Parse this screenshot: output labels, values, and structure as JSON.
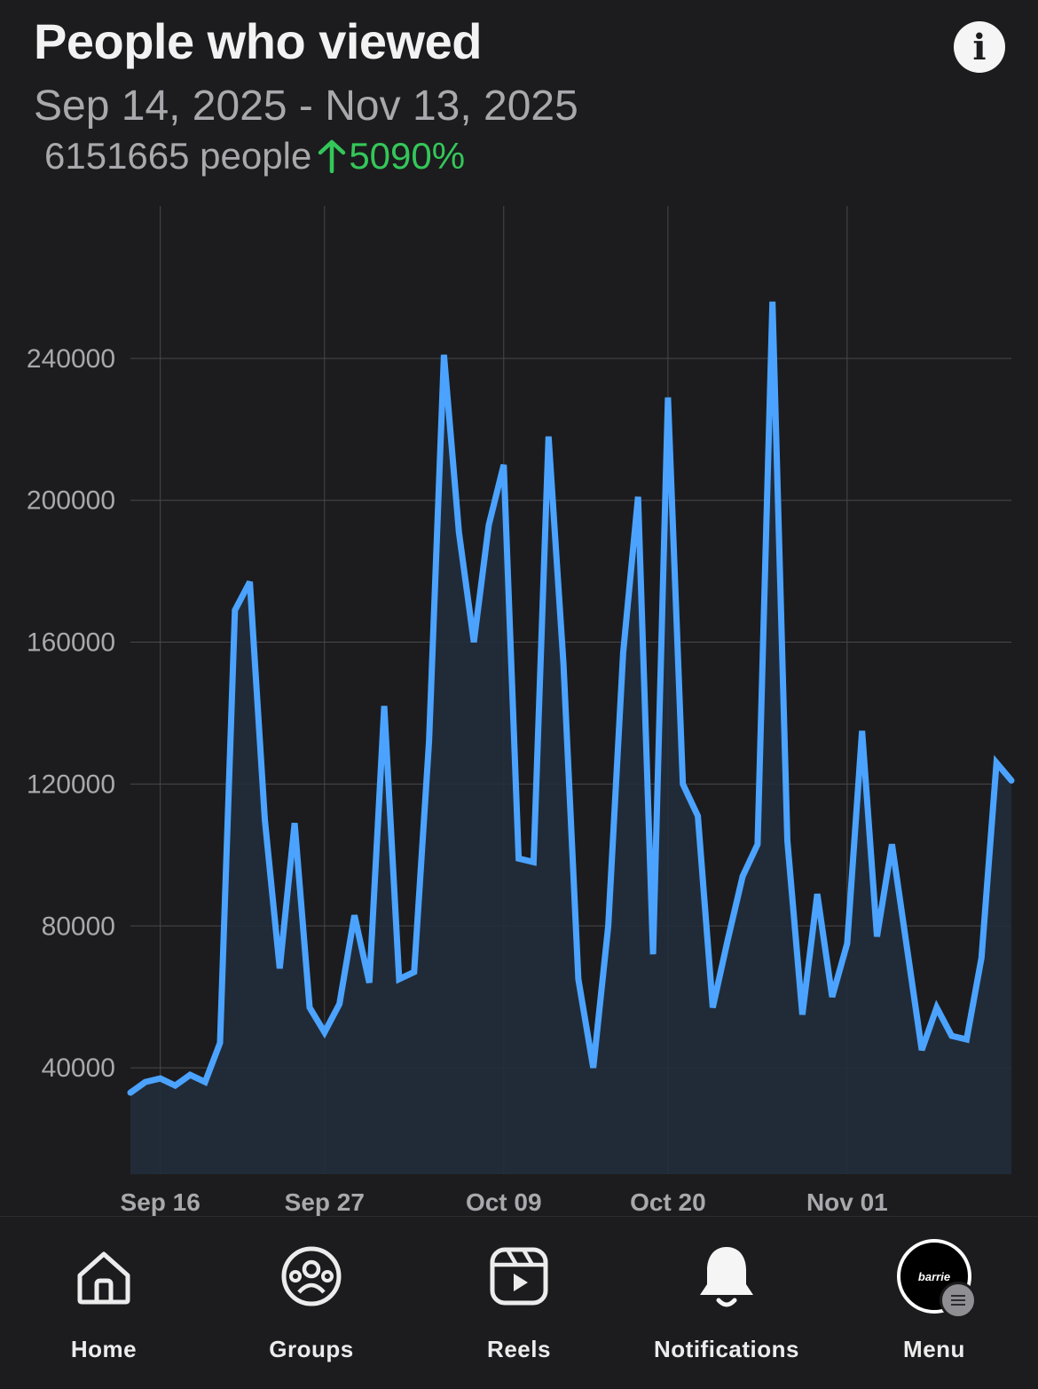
{
  "header": {
    "title": "People who viewed",
    "date_range": "Sep 14, 2025 - Nov 13, 2025",
    "people_count": "6151665 people",
    "change_pct": "5090%",
    "info_icon": "info-icon"
  },
  "colors": {
    "background": "#1c1c1e",
    "line": "#4ba3ff",
    "area": "#222d3b",
    "grid": "#48484a",
    "positive": "#34c759"
  },
  "chart_data": {
    "type": "area",
    "x_start": "Sep 14",
    "x_tick_labels": [
      "Sep 16",
      "Sep 27",
      "Oct 09",
      "Oct 20",
      "Nov 01"
    ],
    "x_tick_day_index": [
      2,
      13,
      25,
      36,
      48
    ],
    "y_ticks": [
      40000,
      80000,
      120000,
      160000,
      200000,
      240000
    ],
    "ylim": [
      10000,
      283000
    ],
    "grid": true,
    "values": [
      33000,
      36000,
      37000,
      35000,
      38000,
      36000,
      47000,
      169000,
      177000,
      110000,
      68000,
      109000,
      57000,
      50000,
      58000,
      83000,
      64000,
      142000,
      65000,
      67000,
      132000,
      241000,
      191000,
      160000,
      193000,
      210000,
      99000,
      98000,
      218000,
      154000,
      65000,
      40000,
      80000,
      157000,
      201000,
      72000,
      229000,
      120000,
      111000,
      57000,
      76000,
      94000,
      103000,
      256000,
      104000,
      55000,
      89000,
      60000,
      75000,
      135000,
      77000,
      103000,
      74000,
      45000,
      57000,
      49000,
      48000,
      71000,
      126000,
      121000
    ]
  },
  "tabbar": {
    "items": [
      {
        "label": "Home",
        "icon": "home-icon"
      },
      {
        "label": "Groups",
        "icon": "groups-icon"
      },
      {
        "label": "Reels",
        "icon": "reels-icon"
      },
      {
        "label": "Notifications",
        "icon": "bell-icon"
      },
      {
        "label": "Menu",
        "icon": "avatar"
      }
    ],
    "avatar_text": "barrie"
  }
}
